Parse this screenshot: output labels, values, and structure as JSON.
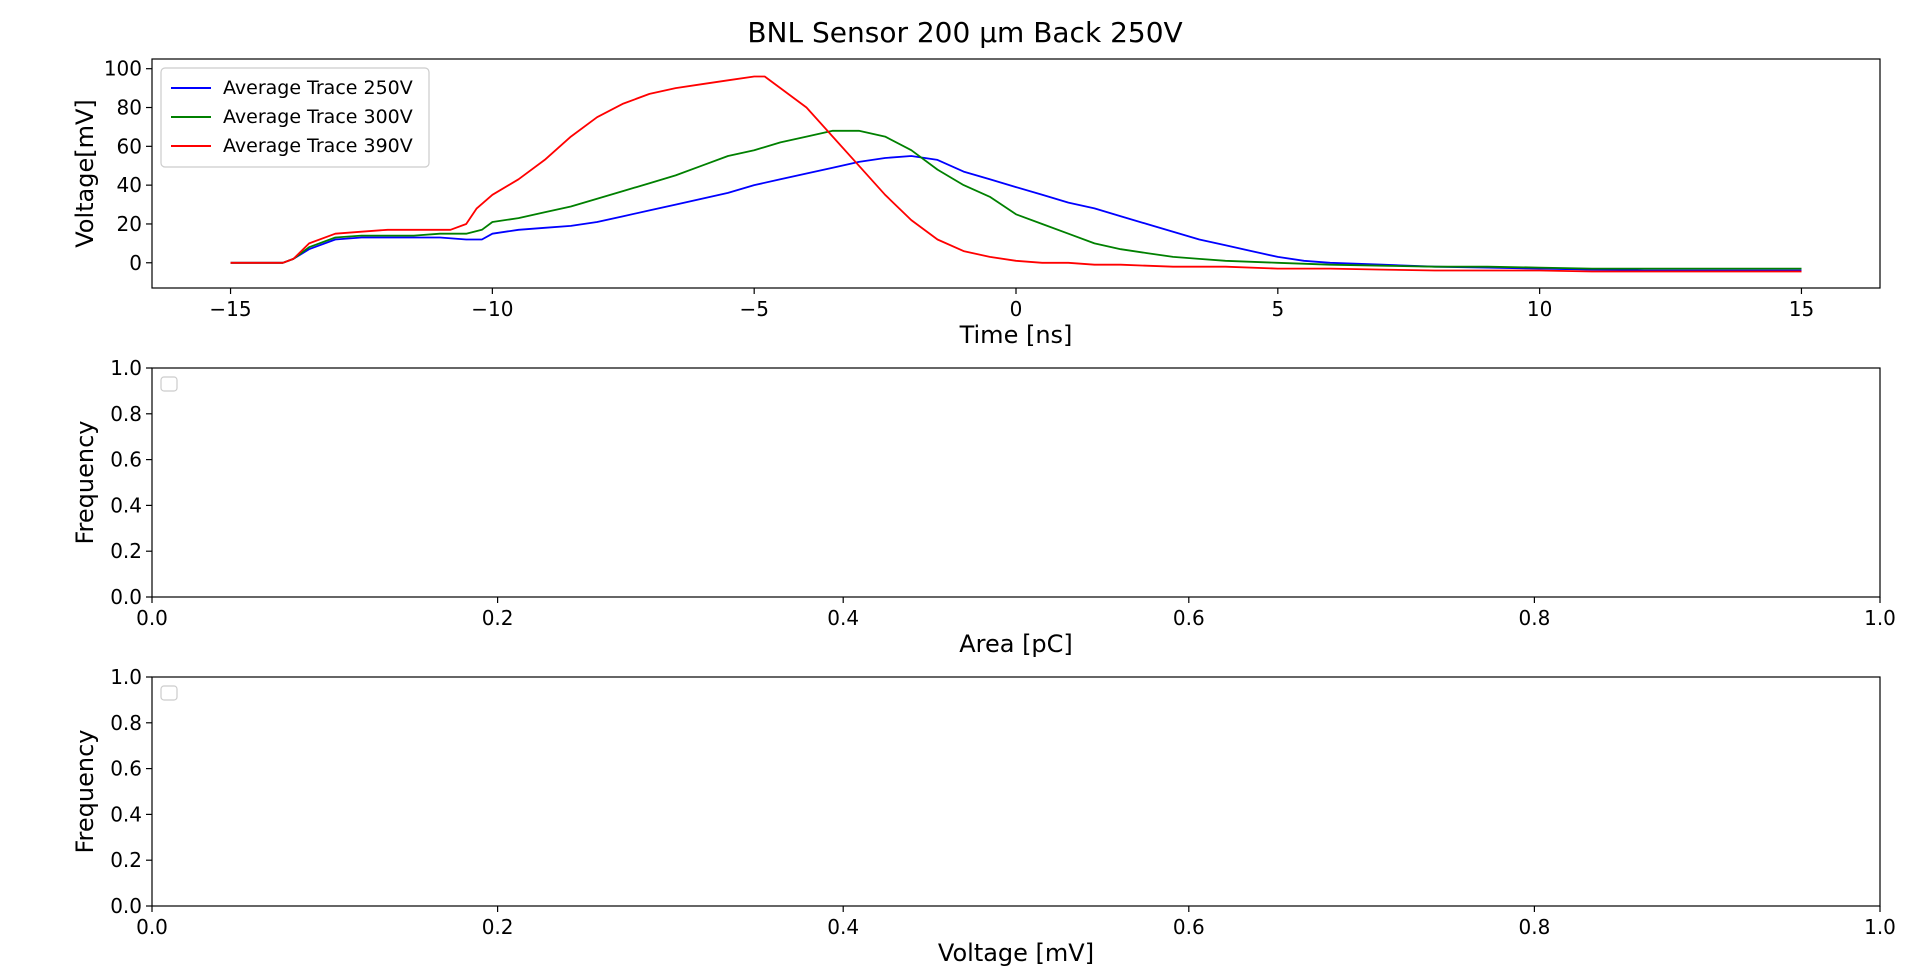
{
  "figure": {
    "title": "BNL Sensor 200 µm Back 250V"
  },
  "chart_data": [
    {
      "type": "line",
      "xlabel": "Time [ns]",
      "ylabel": "Voltage[mV]",
      "xlim": [
        -16.5,
        16.5
      ],
      "ylim": [
        -13,
        105
      ],
      "xticks": [
        "−15",
        "−10",
        "−5",
        "0",
        "5",
        "10",
        "15"
      ],
      "xtick_values": [
        -15,
        -10,
        -5,
        0,
        5,
        10,
        15
      ],
      "yticks": [
        "0",
        "20",
        "40",
        "60",
        "80",
        "100"
      ],
      "ytick_values": [
        0,
        20,
        40,
        60,
        80,
        100
      ],
      "legend_position": "upper-left",
      "series": [
        {
          "name": "Average Trace 250V",
          "color": "#0000ff",
          "x": [
            -15,
            -14.5,
            -14,
            -13.8,
            -13.5,
            -13,
            -12.5,
            -12,
            -11.5,
            -11,
            -10.5,
            -10.2,
            -10,
            -9.5,
            -9,
            -8.5,
            -8,
            -7.5,
            -7,
            -6.5,
            -6,
            -5.5,
            -5,
            -4.5,
            -4,
            -3.5,
            -3,
            -2.5,
            -2,
            -1.5,
            -1,
            -0.5,
            0,
            0.5,
            1,
            1.5,
            2,
            2.5,
            3,
            3.5,
            4,
            4.5,
            5,
            5.5,
            6,
            7,
            8,
            9,
            10,
            11,
            12,
            13,
            14,
            15
          ],
          "y": [
            0,
            0,
            0,
            2,
            7,
            12,
            13,
            13,
            13,
            13,
            12,
            12,
            15,
            17,
            18,
            19,
            21,
            24,
            27,
            30,
            33,
            36,
            40,
            43,
            46,
            49,
            52,
            54,
            55,
            53,
            47,
            43,
            39,
            35,
            31,
            28,
            24,
            20,
            16,
            12,
            9,
            6,
            3,
            1,
            0,
            -1,
            -2,
            -2.5,
            -3,
            -3.5,
            -4,
            -4,
            -4,
            -4
          ]
        },
        {
          "name": "Average Trace 300V",
          "color": "#008000",
          "x": [
            -15,
            -14.5,
            -14,
            -13.8,
            -13.5,
            -13,
            -12.5,
            -12,
            -11.5,
            -11,
            -10.5,
            -10.2,
            -10,
            -9.5,
            -9,
            -8.5,
            -8,
            -7.5,
            -7,
            -6.5,
            -6,
            -5.5,
            -5,
            -4.5,
            -4,
            -3.5,
            -3,
            -2.5,
            -2,
            -1.5,
            -1,
            -0.5,
            0,
            0.5,
            1,
            1.5,
            2,
            2.5,
            3,
            3.5,
            4,
            5,
            6,
            7,
            8,
            9,
            10,
            11,
            12,
            13,
            14,
            15
          ],
          "y": [
            0,
            0,
            0,
            2,
            8,
            13,
            14,
            14,
            14,
            15,
            15,
            17,
            21,
            23,
            26,
            29,
            33,
            37,
            41,
            45,
            50,
            55,
            58,
            62,
            65,
            68,
            68,
            65,
            58,
            48,
            40,
            34,
            25,
            20,
            15,
            10,
            7,
            5,
            3,
            2,
            1,
            0,
            -1,
            -1.5,
            -2,
            -2,
            -2.5,
            -3,
            -3,
            -3,
            -3,
            -3
          ]
        },
        {
          "name": "Average Trace 390V",
          "color": "#ff0000",
          "x": [
            -15,
            -14.5,
            -14,
            -13.8,
            -13.5,
            -13,
            -12.5,
            -12,
            -11.5,
            -11,
            -10.8,
            -10.5,
            -10.3,
            -10,
            -9.5,
            -9,
            -8.5,
            -8,
            -7.5,
            -7,
            -6.5,
            -6,
            -5.5,
            -5,
            -4.8,
            -4.5,
            -4,
            -3.5,
            -3,
            -2.5,
            -2,
            -1.5,
            -1,
            -0.5,
            0,
            0.5,
            1,
            1.5,
            2,
            3,
            4,
            5,
            6,
            7,
            8,
            9,
            10,
            11,
            12,
            13,
            14,
            15
          ],
          "y": [
            0,
            0,
            0,
            2,
            10,
            15,
            16,
            17,
            17,
            17,
            17,
            20,
            28,
            35,
            43,
            53,
            65,
            75,
            82,
            87,
            90,
            92,
            94,
            96,
            96,
            90,
            80,
            65,
            50,
            35,
            22,
            12,
            6,
            3,
            1,
            0,
            0,
            -1,
            -1,
            -2,
            -2,
            -3,
            -3,
            -3.5,
            -4,
            -4,
            -4,
            -4.5,
            -4.5,
            -4.5,
            -4.5,
            -4.5
          ]
        }
      ]
    },
    {
      "type": "bar",
      "xlabel": "Area [pC]",
      "ylabel": "Frequency",
      "xlim": [
        0,
        1
      ],
      "ylim": [
        0,
        1
      ],
      "xticks": [
        "0.0",
        "0.2",
        "0.4",
        "0.6",
        "0.8",
        "1.0"
      ],
      "xtick_values": [
        0,
        0.2,
        0.4,
        0.6,
        0.8,
        1
      ],
      "yticks": [
        "0.0",
        "0.2",
        "0.4",
        "0.6",
        "0.8",
        "1.0"
      ],
      "ytick_values": [
        0,
        0.2,
        0.4,
        0.6,
        0.8,
        1
      ],
      "legend_position": "upper-left",
      "series": []
    },
    {
      "type": "bar",
      "xlabel": "Voltage [mV]",
      "ylabel": "Frequency",
      "xlim": [
        0,
        1
      ],
      "ylim": [
        0,
        1
      ],
      "xticks": [
        "0.0",
        "0.2",
        "0.4",
        "0.6",
        "0.8",
        "1.0"
      ],
      "xtick_values": [
        0,
        0.2,
        0.4,
        0.6,
        0.8,
        1
      ],
      "yticks": [
        "0.0",
        "0.2",
        "0.4",
        "0.6",
        "0.8",
        "1.0"
      ],
      "ytick_values": [
        0,
        0.2,
        0.4,
        0.6,
        0.8,
        1
      ],
      "legend_position": "upper-left",
      "series": []
    }
  ]
}
